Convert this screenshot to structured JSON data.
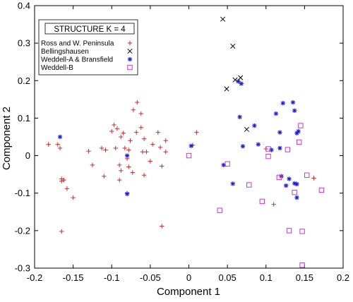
{
  "chart_data": {
    "type": "scatter",
    "title": "",
    "xlabel": "Component 1",
    "ylabel": "Component 2",
    "xlim": [
      -0.2,
      0.2
    ],
    "ylim": [
      -0.3,
      0.4
    ],
    "x_ticks": [
      "-0.2",
      "-0.15",
      "-0.1",
      "-0.05",
      "0",
      "0.05",
      "0.1",
      "0.15",
      "0.2"
    ],
    "y_ticks": [
      "-0.3",
      "-0.2",
      "-0.1",
      "0",
      "0.1",
      "0.2",
      "0.3",
      "0.4"
    ],
    "grid": false,
    "legend_title": "STRUCTURE K = 4",
    "legend_position": "top-left",
    "series": [
      {
        "name": "Ross and W. Peninsula",
        "marker": "plus",
        "color": "#d62728",
        "points": [
          [
            -0.182,
            0.03
          ],
          [
            -0.17,
            0.03
          ],
          [
            -0.167,
            0.02
          ],
          [
            -0.165,
            -0.062
          ],
          [
            -0.165,
            -0.068
          ],
          [
            -0.162,
            -0.065
          ],
          [
            -0.158,
            -0.088
          ],
          [
            -0.15,
            -0.112
          ],
          [
            -0.165,
            -0.202
          ],
          [
            -0.13,
            0.012
          ],
          [
            -0.125,
            -0.025
          ],
          [
            -0.113,
            0.02
          ],
          [
            -0.11,
            -0.055
          ],
          [
            -0.108,
            0.015
          ],
          [
            -0.1,
            0.065
          ],
          [
            -0.097,
            0.082
          ],
          [
            -0.093,
            0.072
          ],
          [
            -0.095,
            0.02
          ],
          [
            -0.09,
            -0.025
          ],
          [
            -0.088,
            -0.04
          ],
          [
            -0.09,
            -0.065
          ],
          [
            -0.088,
            0.05
          ],
          [
            -0.085,
            0.06
          ],
          [
            -0.083,
            0.02
          ],
          [
            -0.08,
            -0.008
          ],
          [
            -0.078,
            -0.03
          ],
          [
            -0.078,
            0.015
          ],
          [
            -0.076,
            0.04
          ],
          [
            -0.073,
            -0.045
          ],
          [
            -0.072,
            0.122
          ],
          [
            -0.068,
            0.062
          ],
          [
            -0.067,
            0.142
          ],
          [
            -0.062,
            0.075
          ],
          [
            -0.062,
            0.112
          ],
          [
            -0.058,
            -0.052
          ],
          [
            -0.06,
            0.01
          ],
          [
            -0.055,
            0.01
          ],
          [
            -0.058,
            0.045
          ],
          [
            -0.05,
            -0.015
          ],
          [
            -0.047,
            0.03
          ],
          [
            -0.04,
            0.062
          ],
          [
            -0.037,
            0.022
          ],
          [
            -0.035,
            -0.028
          ],
          [
            -0.035,
            -0.188
          ],
          [
            -0.03,
            0.04
          ],
          [
            -0.03,
            0.01
          ],
          [
            -0.08,
            -0.1
          ],
          [
            0.01,
            0.062
          ],
          [
            0.005,
            0.028
          ],
          [
            0.1,
            0.018
          ],
          [
            0.11,
            -0.13
          ],
          [
            0.162,
            -0.06
          ]
        ]
      },
      {
        "name": "Bellingshausen",
        "marker": "x",
        "color": "#000000",
        "points": [
          [
            0.044,
            0.364
          ],
          [
            0.057,
            0.292
          ],
          [
            0.06,
            0.202
          ],
          [
            0.067,
            0.208
          ],
          [
            0.049,
            0.178
          ],
          [
            0.075,
            0.07
          ]
        ]
      },
      {
        "name": "Weddell-A & Bransfield",
        "marker": "asterisk",
        "color": "#1f1fd0",
        "points": [
          [
            -0.167,
            0.05
          ],
          [
            -0.08,
            0.0
          ],
          [
            -0.08,
            -0.102
          ],
          [
            0.003,
            0.026
          ],
          [
            0.045,
            -0.025
          ],
          [
            0.057,
            -0.075
          ],
          [
            0.064,
            0.198
          ],
          [
            0.068,
            0.192
          ],
          [
            0.066,
            0.103
          ],
          [
            0.07,
            0.025
          ],
          [
            0.085,
            0.08
          ],
          [
            0.09,
            0.03
          ],
          [
            0.107,
            0.015
          ],
          [
            0.113,
            0.112
          ],
          [
            0.118,
            0.062
          ],
          [
            0.122,
            0.14
          ],
          [
            0.135,
            0.142
          ],
          [
            0.137,
            0.12
          ],
          [
            0.14,
            0.06
          ],
          [
            0.142,
            0.065
          ],
          [
            0.118,
            0.02
          ],
          [
            0.12,
            -0.055
          ],
          [
            0.126,
            -0.08
          ],
          [
            0.13,
            -0.062
          ],
          [
            0.137,
            -0.074
          ],
          [
            0.14,
            -0.112
          ],
          [
            0.14,
            -0.076
          ]
        ]
      },
      {
        "name": "Weddell-B",
        "marker": "square",
        "color": "#c43cc4",
        "points": [
          [
            0.0,
            0.0
          ],
          [
            0.05,
            -0.022
          ],
          [
            0.04,
            -0.146
          ],
          [
            0.078,
            -0.078
          ],
          [
            0.095,
            -0.122
          ],
          [
            0.103,
            0.018
          ],
          [
            0.103,
            -0.002
          ],
          [
            0.117,
            -0.058
          ],
          [
            0.128,
            0.016
          ],
          [
            0.13,
            -0.2
          ],
          [
            0.137,
            -0.098
          ],
          [
            0.145,
            0.08
          ],
          [
            0.143,
            0.036
          ],
          [
            0.147,
            -0.202
          ],
          [
            0.147,
            -0.292
          ],
          [
            0.153,
            -0.052
          ],
          [
            0.172,
            -0.092
          ]
        ]
      }
    ]
  }
}
